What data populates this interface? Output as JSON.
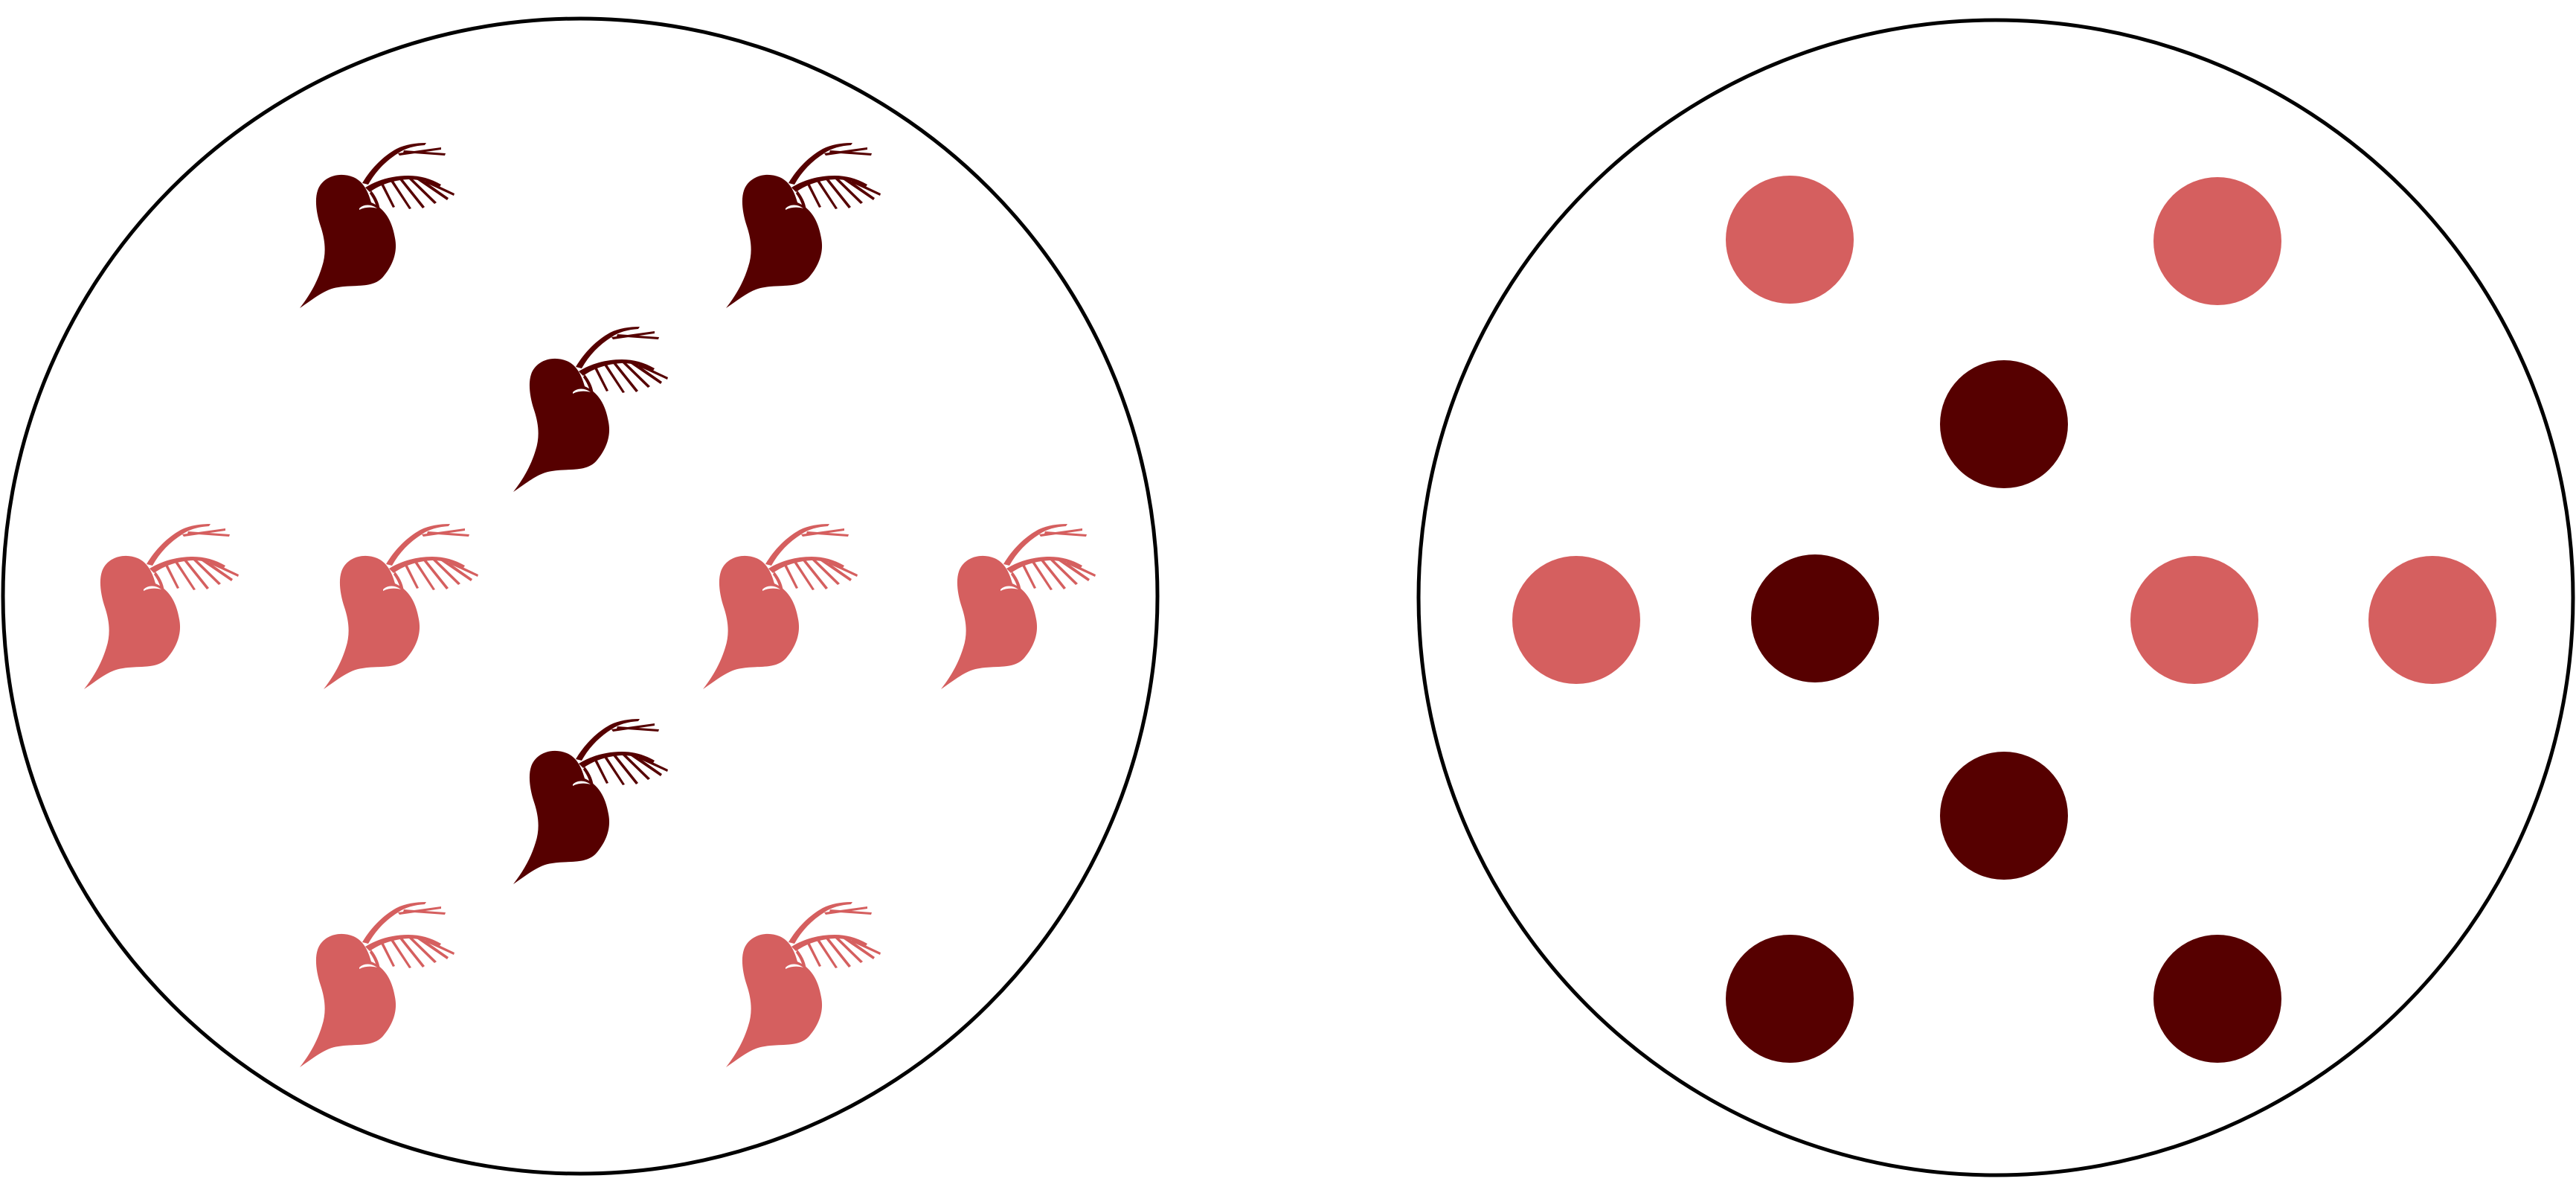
{
  "colors": {
    "background": "#ffffff",
    "outline": "#000000",
    "dark": "#560000",
    "light": "#d55f5f",
    "beet_highlight": "#ffffff"
  },
  "left_panel": {
    "item_icon": "beet-icon",
    "items": [
      {
        "shade": "dark"
      },
      {
        "shade": "dark"
      },
      {
        "shade": "dark"
      },
      {
        "shade": "light"
      },
      {
        "shade": "light"
      },
      {
        "shade": "light"
      },
      {
        "shade": "light"
      },
      {
        "shade": "dark"
      },
      {
        "shade": "light"
      },
      {
        "shade": "light"
      }
    ]
  },
  "right_panel": {
    "item_icon": "dot-icon",
    "items": [
      {
        "shade": "light"
      },
      {
        "shade": "light"
      },
      {
        "shade": "dark"
      },
      {
        "shade": "light"
      },
      {
        "shade": "dark"
      },
      {
        "shade": "light"
      },
      {
        "shade": "light"
      },
      {
        "shade": "dark"
      },
      {
        "shade": "dark"
      },
      {
        "shade": "dark"
      }
    ]
  }
}
